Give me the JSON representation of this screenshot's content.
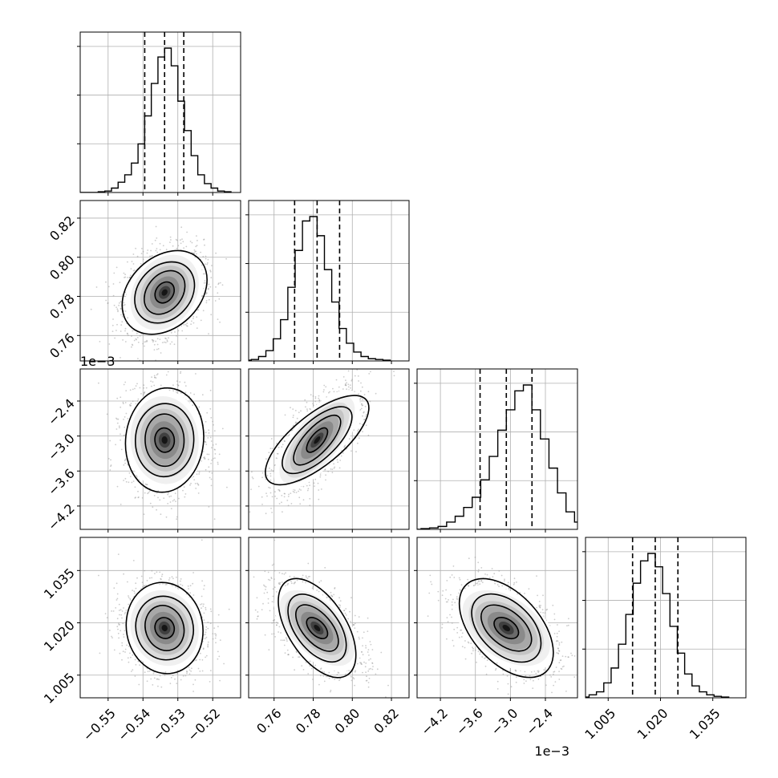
{
  "chart_data": {
    "type": "corner",
    "parameters": [
      {
        "range": [
          -0.558,
          -0.512
        ],
        "ticks": [
          -0.55,
          -0.54,
          -0.53,
          -0.52
        ],
        "tick_labels": [
          "−0.55",
          "−0.54",
          "−0.53",
          "−0.52"
        ],
        "offset_label": "",
        "mean": -0.5338,
        "sd": 0.0056,
        "quantiles": [
          -0.5395,
          -0.5338,
          -0.5283
        ],
        "histogram": [
          0.005,
          0.01,
          0.03,
          0.07,
          0.12,
          0.2,
          0.33,
          0.52,
          0.74,
          0.92,
          0.98,
          0.86,
          0.62,
          0.42,
          0.25,
          0.12,
          0.06,
          0.03,
          0.01,
          0.005
        ]
      },
      {
        "range": [
          0.747,
          0.829
        ],
        "ticks": [
          0.76,
          0.78,
          0.8,
          0.82
        ],
        "tick_labels": [
          "0.76",
          "0.78",
          "0.80",
          "0.82"
        ],
        "offset_label": "",
        "mean": 0.782,
        "sd": 0.011,
        "quantiles": [
          0.7705,
          0.782,
          0.7935
        ],
        "histogram": [
          0.005,
          0.01,
          0.03,
          0.07,
          0.15,
          0.28,
          0.5,
          0.75,
          0.95,
          0.98,
          0.85,
          0.62,
          0.4,
          0.22,
          0.12,
          0.06,
          0.03,
          0.015,
          0.01,
          0.005
        ]
      },
      {
        "range": [
          -4.6,
          -1.85
        ],
        "ticks": [
          -4.2,
          -3.6,
          -3.0,
          -2.4
        ],
        "tick_labels": [
          "−4.2",
          "−3.6",
          "−3.0",
          "−2.4"
        ],
        "offset_label": "1e−3",
        "mean": -3.07,
        "sd": 0.43,
        "quantiles": [
          -3.52,
          -3.07,
          -2.63
        ],
        "histogram": [
          0.005,
          0.01,
          0.02,
          0.05,
          0.09,
          0.15,
          0.22,
          0.34,
          0.5,
          0.68,
          0.82,
          0.95,
          0.99,
          0.82,
          0.62,
          0.42,
          0.25,
          0.12,
          0.05,
          0.02
        ]
      },
      {
        "range": [
          0.9985,
          1.0445
        ],
        "ticks": [
          1.005,
          1.02,
          1.035
        ],
        "tick_labels": [
          "1.005",
          "1.020",
          "1.035"
        ],
        "offset_label": "",
        "mean": 1.0185,
        "sd": 0.0062,
        "quantiles": [
          1.012,
          1.0185,
          1.025
        ],
        "histogram": [
          0.005,
          0.02,
          0.04,
          0.1,
          0.2,
          0.36,
          0.56,
          0.77,
          0.92,
          0.97,
          0.88,
          0.7,
          0.48,
          0.3,
          0.16,
          0.08,
          0.04,
          0.02,
          0.01,
          0.005
        ]
      }
    ],
    "correlations": [
      [
        1,
        0.25,
        -0.05,
        -0.1
      ],
      [
        0.25,
        1,
        0.7,
        -0.55
      ],
      [
        -0.05,
        0.7,
        1,
        -0.45
      ],
      [
        -0.1,
        -0.55,
        -0.45,
        1
      ]
    ],
    "contour_levels_sigma": [
      0.5,
      1.0,
      1.5,
      2.0
    ],
    "grid": true
  }
}
